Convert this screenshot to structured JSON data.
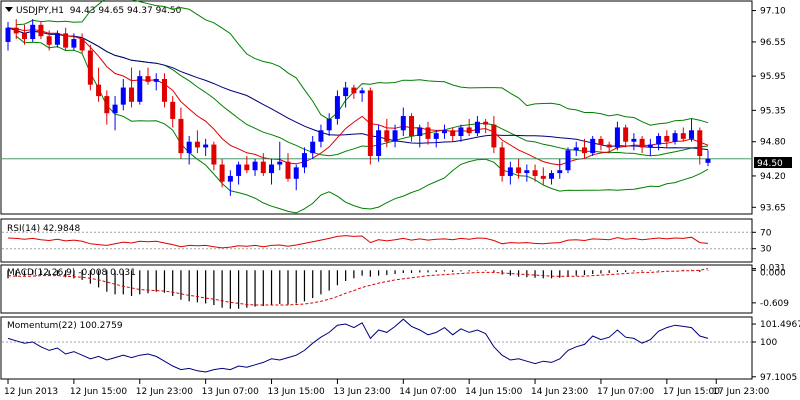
{
  "chart_data": [
    {
      "id": "price",
      "type": "candlestick",
      "title": "USDJPY,H1  94.43 94.65 94.37 94.50",
      "ylim": [
        93.55,
        97.25
      ],
      "yticks": [
        "97.10",
        "96.55",
        "95.95",
        "95.35",
        "94.80",
        "94.20",
        "93.65"
      ],
      "last_price": 94.5,
      "last_price_label": "94.50",
      "colors": {
        "bull": "#0000ff",
        "bear": "#e00000",
        "sma": "#000080",
        "ema": "#e00000",
        "bollinger": "#008000"
      },
      "candles": [
        [
          96.55,
          96.9,
          96.4,
          96.8
        ],
        [
          96.8,
          96.95,
          96.6,
          96.7
        ],
        [
          96.7,
          96.85,
          96.5,
          96.6
        ],
        [
          96.6,
          96.95,
          96.55,
          96.85
        ],
        [
          96.85,
          96.9,
          96.6,
          96.65
        ],
        [
          96.65,
          96.75,
          96.4,
          96.5
        ],
        [
          96.5,
          96.75,
          96.45,
          96.7
        ],
        [
          96.7,
          96.8,
          96.4,
          96.45
        ],
        [
          96.45,
          96.7,
          96.4,
          96.6
        ],
        [
          96.6,
          96.7,
          96.35,
          96.4
        ],
        [
          96.4,
          96.5,
          95.7,
          95.8
        ],
        [
          95.8,
          96.1,
          95.5,
          95.6
        ],
        [
          95.6,
          95.7,
          95.1,
          95.3
        ],
        [
          95.3,
          95.6,
          95.0,
          95.45
        ],
        [
          95.45,
          95.9,
          95.35,
          95.75
        ],
        [
          95.75,
          96.1,
          95.4,
          95.5
        ],
        [
          95.5,
          96.05,
          95.45,
          95.95
        ],
        [
          95.95,
          96.1,
          95.8,
          95.85
        ],
        [
          95.85,
          96.0,
          95.7,
          95.9
        ],
        [
          95.9,
          96.0,
          95.4,
          95.5
        ],
        [
          95.5,
          95.6,
          95.05,
          95.2
        ],
        [
          95.2,
          95.4,
          94.5,
          94.6
        ],
        [
          94.6,
          94.9,
          94.4,
          94.8
        ],
        [
          94.8,
          95.0,
          94.6,
          94.7
        ],
        [
          94.7,
          94.85,
          94.55,
          94.75
        ],
        [
          94.75,
          94.8,
          94.3,
          94.4
        ],
        [
          94.4,
          94.5,
          94.0,
          94.1
        ],
        [
          94.1,
          94.3,
          93.85,
          94.2
        ],
        [
          94.2,
          94.45,
          94.05,
          94.4
        ],
        [
          94.4,
          94.55,
          94.25,
          94.3
        ],
        [
          94.3,
          94.5,
          94.2,
          94.45
        ],
        [
          94.45,
          94.6,
          94.2,
          94.25
        ],
        [
          94.25,
          94.5,
          94.05,
          94.4
        ],
        [
          94.4,
          94.8,
          94.3,
          94.45
        ],
        [
          94.45,
          94.6,
          94.1,
          94.15
        ],
        [
          94.15,
          94.4,
          93.95,
          94.35
        ],
        [
          94.35,
          94.7,
          94.25,
          94.6
        ],
        [
          94.6,
          94.9,
          94.5,
          94.8
        ],
        [
          94.8,
          95.1,
          94.7,
          95.0
        ],
        [
          95.0,
          95.3,
          94.9,
          95.2
        ],
        [
          95.2,
          95.7,
          95.1,
          95.6
        ],
        [
          95.6,
          95.85,
          95.4,
          95.75
        ],
        [
          95.75,
          95.8,
          95.55,
          95.65
        ],
        [
          95.65,
          95.75,
          95.5,
          95.7
        ],
        [
          95.7,
          95.75,
          94.4,
          94.55
        ],
        [
          94.55,
          95.1,
          94.45,
          95.0
        ],
        [
          95.0,
          95.2,
          94.7,
          94.8
        ],
        [
          94.8,
          95.1,
          94.7,
          95.0
        ],
        [
          95.0,
          95.4,
          94.9,
          95.25
        ],
        [
          95.25,
          95.3,
          94.8,
          94.9
        ],
        [
          94.9,
          95.1,
          94.7,
          95.05
        ],
        [
          95.05,
          95.15,
          94.75,
          94.85
        ],
        [
          94.85,
          95.0,
          94.7,
          94.95
        ],
        [
          94.95,
          95.1,
          94.85,
          95.0
        ],
        [
          95.0,
          95.05,
          94.8,
          94.9
        ],
        [
          94.9,
          95.1,
          94.8,
          95.05
        ],
        [
          95.05,
          95.2,
          94.9,
          94.95
        ],
        [
          94.95,
          95.25,
          94.9,
          95.15
        ],
        [
          95.15,
          95.2,
          94.95,
          95.1
        ],
        [
          95.1,
          95.25,
          94.6,
          94.7
        ],
        [
          94.7,
          94.8,
          94.1,
          94.2
        ],
        [
          94.2,
          94.45,
          94.05,
          94.35
        ],
        [
          94.35,
          94.5,
          94.15,
          94.25
        ],
        [
          94.25,
          94.4,
          94.1,
          94.3
        ],
        [
          94.3,
          94.4,
          94.1,
          94.2
        ],
        [
          94.2,
          94.35,
          94.05,
          94.15
        ],
        [
          94.15,
          94.3,
          94.05,
          94.25
        ],
        [
          94.25,
          94.5,
          94.15,
          94.3
        ],
        [
          94.3,
          94.7,
          94.25,
          94.65
        ],
        [
          94.65,
          94.8,
          94.55,
          94.7
        ],
        [
          94.7,
          94.85,
          94.5,
          94.6
        ],
        [
          94.6,
          94.9,
          94.55,
          94.85
        ],
        [
          94.85,
          94.9,
          94.65,
          94.75
        ],
        [
          94.75,
          94.8,
          94.6,
          94.7
        ],
        [
          94.7,
          95.15,
          94.65,
          95.05
        ],
        [
          95.05,
          95.1,
          94.7,
          94.8
        ],
        [
          94.8,
          94.95,
          94.65,
          94.85
        ],
        [
          94.85,
          94.9,
          94.6,
          94.7
        ],
        [
          94.7,
          94.85,
          94.55,
          94.75
        ],
        [
          94.75,
          94.95,
          94.65,
          94.9
        ],
        [
          94.9,
          95.0,
          94.7,
          94.8
        ],
        [
          94.8,
          95.0,
          94.75,
          94.95
        ],
        [
          94.95,
          95.05,
          94.8,
          94.85
        ],
        [
          94.85,
          95.2,
          94.8,
          95.0
        ],
        [
          95.0,
          95.05,
          94.4,
          94.55
        ],
        [
          94.43,
          94.65,
          94.37,
          94.5
        ]
      ]
    },
    {
      "id": "rsi",
      "type": "line",
      "title": "RSI(14) 42.9848",
      "ylim": [
        0,
        100
      ],
      "yticks": [
        "70",
        "30"
      ],
      "levels": [
        70,
        30
      ],
      "color": "#e00000",
      "values": [
        56,
        55,
        53,
        55,
        52,
        50,
        53,
        49,
        51,
        48,
        42,
        40,
        38,
        42,
        46,
        44,
        48,
        47,
        48,
        44,
        40,
        35,
        38,
        37,
        38,
        35,
        32,
        34,
        37,
        36,
        38,
        35,
        38,
        39,
        36,
        39,
        43,
        47,
        51,
        55,
        60,
        62,
        60,
        61,
        45,
        52,
        49,
        52,
        55,
        51,
        54,
        51,
        53,
        54,
        52,
        55,
        53,
        56,
        55,
        50,
        42,
        45,
        44,
        45,
        43,
        42,
        44,
        45,
        51,
        52,
        50,
        54,
        53,
        52,
        57,
        53,
        55,
        52,
        54,
        56,
        54,
        56,
        55,
        58,
        45,
        43
      ]
    },
    {
      "id": "macd",
      "type": "histogram_line",
      "title": "MACD(12,26,9) -0.008 0.031",
      "ylim": [
        -0.78,
        0.08
      ],
      "yticks": [
        "0.031",
        "0.000",
        "-0.609"
      ],
      "colors": {
        "histogram": "#000000",
        "signal": "#e00000"
      },
      "histogram": [
        -0.15,
        -0.12,
        -0.1,
        -0.08,
        -0.08,
        -0.1,
        -0.1,
        -0.13,
        -0.15,
        -0.18,
        -0.25,
        -0.32,
        -0.4,
        -0.45,
        -0.45,
        -0.48,
        -0.45,
        -0.43,
        -0.4,
        -0.42,
        -0.48,
        -0.55,
        -0.58,
        -0.6,
        -0.62,
        -0.65,
        -0.7,
        -0.72,
        -0.72,
        -0.7,
        -0.68,
        -0.67,
        -0.65,
        -0.63,
        -0.64,
        -0.62,
        -0.58,
        -0.52,
        -0.45,
        -0.38,
        -0.28,
        -0.2,
        -0.15,
        -0.1,
        -0.12,
        -0.1,
        -0.09,
        -0.07,
        -0.05,
        -0.05,
        -0.04,
        -0.04,
        -0.03,
        -0.02,
        -0.03,
        -0.02,
        -0.02,
        -0.01,
        -0.01,
        -0.03,
        -0.08,
        -0.1,
        -0.12,
        -0.13,
        -0.14,
        -0.15,
        -0.15,
        -0.14,
        -0.12,
        -0.1,
        -0.09,
        -0.07,
        -0.06,
        -0.05,
        -0.03,
        -0.03,
        -0.02,
        -0.02,
        -0.01,
        -0.01,
        0.0,
        0.0,
        0.01,
        0.01,
        -0.03,
        -0.008
      ],
      "signal": [
        -0.1,
        -0.11,
        -0.11,
        -0.11,
        -0.1,
        -0.1,
        -0.1,
        -0.11,
        -0.12,
        -0.13,
        -0.15,
        -0.18,
        -0.22,
        -0.26,
        -0.3,
        -0.33,
        -0.36,
        -0.37,
        -0.38,
        -0.39,
        -0.41,
        -0.44,
        -0.47,
        -0.49,
        -0.52,
        -0.54,
        -0.57,
        -0.6,
        -0.62,
        -0.64,
        -0.65,
        -0.65,
        -0.65,
        -0.65,
        -0.65,
        -0.64,
        -0.63,
        -0.61,
        -0.58,
        -0.54,
        -0.49,
        -0.43,
        -0.38,
        -0.32,
        -0.28,
        -0.24,
        -0.21,
        -0.18,
        -0.16,
        -0.14,
        -0.12,
        -0.1,
        -0.09,
        -0.08,
        -0.07,
        -0.06,
        -0.05,
        -0.04,
        -0.04,
        -0.04,
        -0.05,
        -0.06,
        -0.07,
        -0.08,
        -0.09,
        -0.1,
        -0.11,
        -0.11,
        -0.11,
        -0.11,
        -0.11,
        -0.1,
        -0.09,
        -0.08,
        -0.07,
        -0.06,
        -0.05,
        -0.04,
        -0.04,
        -0.03,
        -0.02,
        -0.02,
        -0.01,
        -0.01,
        0.0,
        0.031
      ]
    },
    {
      "id": "momentum",
      "type": "line",
      "title": "Momentum(22) 100.2759",
      "ylim": [
        97.0,
        102.0
      ],
      "yticks": [
        "101.4967",
        "100",
        "97.1005"
      ],
      "levels": [
        100
      ],
      "color": "#000080",
      "values": [
        100.3,
        100.1,
        99.9,
        100.0,
        99.6,
        99.3,
        99.5,
        99.0,
        99.2,
        98.9,
        98.6,
        98.8,
        98.5,
        98.7,
        98.9,
        98.7,
        98.9,
        99.0,
        98.8,
        98.4,
        98.0,
        97.7,
        97.8,
        97.6,
        97.5,
        97.7,
        97.8,
        97.7,
        98.0,
        97.9,
        98.1,
        98.3,
        98.6,
        98.5,
        98.7,
        98.9,
        99.3,
        99.9,
        100.4,
        100.8,
        101.4,
        101.5,
        101.2,
        101.6,
        100.3,
        101.0,
        100.8,
        101.3,
        101.9,
        101.3,
        101.0,
        100.6,
        100.8,
        101.2,
        100.6,
        101.1,
        100.8,
        101.0,
        100.7,
        99.6,
        98.9,
        98.5,
        98.6,
        98.4,
        98.2,
        98.4,
        98.3,
        98.6,
        99.3,
        99.6,
        99.8,
        100.5,
        100.2,
        100.4,
        101.0,
        100.4,
        100.3,
        99.9,
        100.2,
        100.9,
        101.2,
        101.4,
        101.3,
        101.2,
        100.5,
        100.3
      ]
    },
    {
      "id": "time-axis",
      "type": "axis",
      "labels": [
        "12 Jun 2013",
        "12 Jun 15:00",
        "12 Jun 23:00",
        "13 Jun 07:00",
        "13 Jun 15:00",
        "13 Jun 23:00",
        "14 Jun 07:00",
        "14 Jun 15:00",
        "14 Jun 23:00",
        "17 Jun 07:00",
        "17 Jun 15:00",
        "17 Jun 23:00"
      ],
      "label_bars": [
        0,
        8,
        16,
        24,
        32,
        40,
        48,
        56,
        64,
        72,
        80,
        86
      ]
    }
  ]
}
